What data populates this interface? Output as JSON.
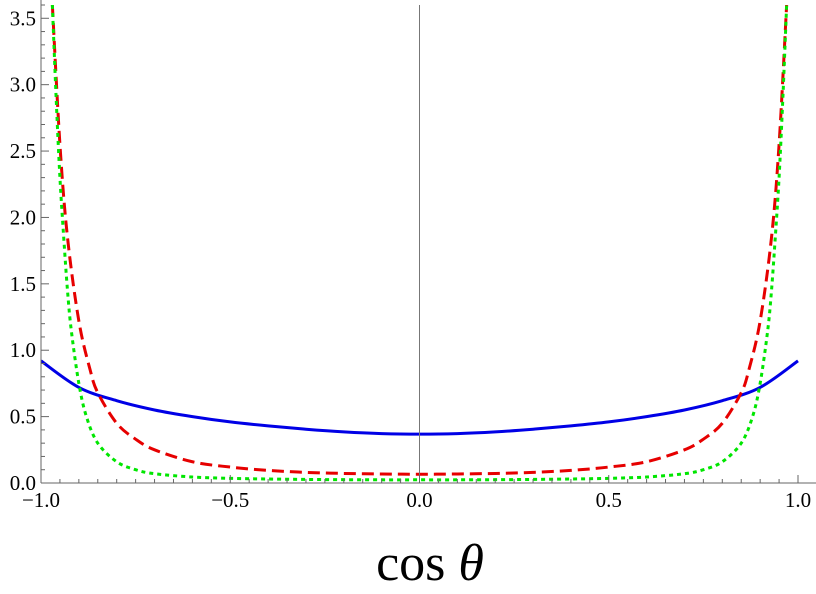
{
  "chart_data": {
    "type": "line",
    "title": "",
    "xlabel": "cos θ",
    "xlabel_text": "cos ",
    "xlabel_symbol": "θ",
    "ylabel": "",
    "xlim": [
      -1.0,
      1.0
    ],
    "ylim": [
      0.0,
      3.6
    ],
    "x_ticks": [
      -1.0,
      -0.5,
      0.0,
      0.5,
      1.0
    ],
    "x_tick_labels": [
      "−1.0",
      "−0.5",
      "0.0",
      "0.5",
      "1.0"
    ],
    "y_ticks": [
      0.0,
      0.5,
      1.0,
      1.5,
      2.0,
      2.5,
      3.0,
      3.5
    ],
    "y_tick_labels": [
      "0.0",
      "0.5",
      "1.0",
      "1.5",
      "2.0",
      "2.5",
      "3.0",
      "3.5"
    ],
    "grid": false,
    "legend": "none",
    "series": [
      {
        "color": "#0000e6",
        "style": "solid",
        "x": [
          -1.0,
          -0.9,
          -0.8,
          -0.7,
          -0.6,
          -0.5,
          -0.4,
          -0.3,
          -0.2,
          -0.1,
          0.0,
          0.1,
          0.2,
          0.3,
          0.4,
          0.5,
          0.6,
          0.7,
          0.8,
          0.9,
          1.0
        ],
        "y": [
          0.92,
          0.72,
          0.62,
          0.55,
          0.5,
          0.46,
          0.43,
          0.405,
          0.385,
          0.372,
          0.368,
          0.372,
          0.385,
          0.405,
          0.43,
          0.46,
          0.5,
          0.55,
          0.62,
          0.72,
          0.92
        ]
      },
      {
        "color": "#e60000",
        "style": "dashed",
        "x": [
          -0.97,
          -0.95,
          -0.93,
          -0.9,
          -0.87,
          -0.85,
          -0.8,
          -0.75,
          -0.7,
          -0.6,
          -0.5,
          -0.4,
          -0.3,
          -0.2,
          -0.1,
          0.0,
          0.1,
          0.2,
          0.3,
          0.4,
          0.5,
          0.6,
          0.7,
          0.75,
          0.8,
          0.85,
          0.87,
          0.9,
          0.93,
          0.95,
          0.97
        ],
        "y": [
          3.6,
          2.55,
          1.85,
          1.22,
          0.85,
          0.68,
          0.45,
          0.33,
          0.25,
          0.16,
          0.12,
          0.095,
          0.08,
          0.072,
          0.068,
          0.066,
          0.068,
          0.072,
          0.08,
          0.095,
          0.12,
          0.16,
          0.25,
          0.33,
          0.45,
          0.68,
          0.85,
          1.22,
          1.85,
          2.55,
          3.6
        ]
      },
      {
        "color": "#00e600",
        "style": "dotted",
        "x": [
          -0.97,
          -0.96,
          -0.95,
          -0.94,
          -0.93,
          -0.92,
          -0.9,
          -0.88,
          -0.85,
          -0.8,
          -0.75,
          -0.7,
          -0.6,
          -0.5,
          -0.4,
          -0.3,
          -0.2,
          -0.1,
          0.0,
          0.1,
          0.2,
          0.3,
          0.4,
          0.5,
          0.6,
          0.7,
          0.75,
          0.8,
          0.85,
          0.88,
          0.9,
          0.92,
          0.93,
          0.94,
          0.95,
          0.96,
          0.97
        ],
        "y": [
          3.6,
          2.9,
          2.3,
          1.85,
          1.45,
          1.15,
          0.75,
          0.5,
          0.3,
          0.16,
          0.1,
          0.07,
          0.045,
          0.035,
          0.03,
          0.027,
          0.025,
          0.024,
          0.024,
          0.024,
          0.025,
          0.027,
          0.03,
          0.035,
          0.045,
          0.07,
          0.1,
          0.16,
          0.3,
          0.5,
          0.75,
          1.15,
          1.45,
          1.85,
          2.3,
          2.9,
          3.6
        ]
      }
    ]
  }
}
